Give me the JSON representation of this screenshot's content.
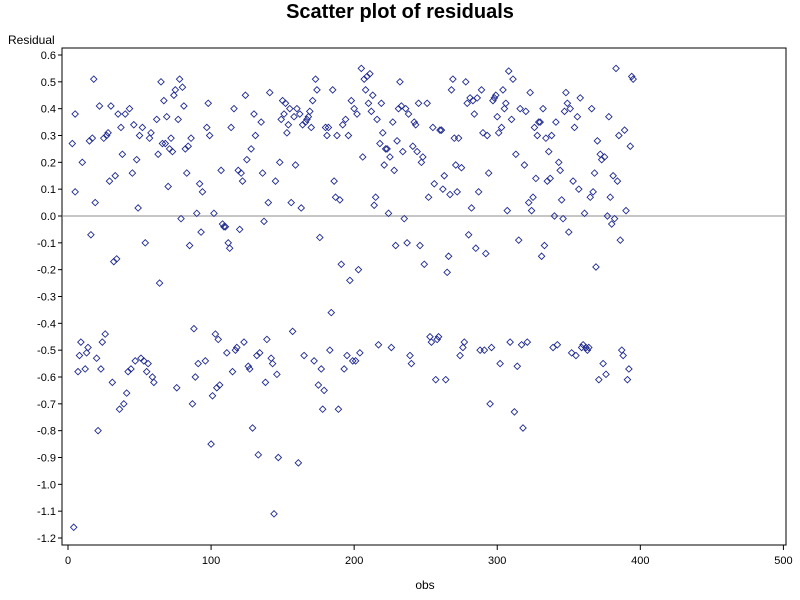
{
  "chart_data": {
    "type": "scatter",
    "title": "Scatter plot of residuals",
    "xlabel": "obs",
    "ylabel": "Residual",
    "xlim": [
      0,
      500
    ],
    "ylim": [
      -1.25,
      0.62
    ],
    "xticks": [
      "0",
      "100",
      "200",
      "300",
      "400",
      "500"
    ],
    "yticks": [
      "0.6",
      "0.5",
      "0.4",
      "0.3",
      "0.2",
      "0.1",
      "0.0",
      "-0.1",
      "-0.2",
      "-0.3",
      "-0.4",
      "-0.5",
      "-0.6",
      "-0.7",
      "-0.8",
      "-0.9",
      "-1.0",
      "-1.1",
      "-1.2"
    ],
    "reference_line_y": 0,
    "marker": "diamond",
    "marker_color": "#1f2a8f",
    "reference_line_color": "#8c8c8c",
    "grid": false,
    "points": [
      [
        3,
        0.27
      ],
      [
        4,
        -1.16
      ],
      [
        5,
        0.38
      ],
      [
        5,
        0.09
      ],
      [
        7,
        -0.58
      ],
      [
        8,
        -0.52
      ],
      [
        9,
        -0.47
      ],
      [
        10,
        0.2
      ],
      [
        12,
        -0.57
      ],
      [
        13,
        -0.51
      ],
      [
        14,
        -0.49
      ],
      [
        15,
        0.28
      ],
      [
        16,
        -0.07
      ],
      [
        17,
        0.29
      ],
      [
        18,
        0.51
      ],
      [
        19,
        0.05
      ],
      [
        20,
        -0.53
      ],
      [
        21,
        -0.8
      ],
      [
        22,
        0.41
      ],
      [
        23,
        -0.57
      ],
      [
        24,
        -0.47
      ],
      [
        25,
        0.29
      ],
      [
        26,
        -0.44
      ],
      [
        27,
        0.3
      ],
      [
        28,
        0.31
      ],
      [
        29,
        0.13
      ],
      [
        30,
        0.41
      ],
      [
        31,
        -0.62
      ],
      [
        32,
        -0.17
      ],
      [
        33,
        0.15
      ],
      [
        34,
        -0.16
      ],
      [
        35,
        0.38
      ],
      [
        36,
        -0.72
      ],
      [
        37,
        0.33
      ],
      [
        38,
        0.23
      ],
      [
        39,
        -0.7
      ],
      [
        40,
        0.38
      ],
      [
        41,
        -0.66
      ],
      [
        42,
        -0.58
      ],
      [
        43,
        0.4
      ],
      [
        44,
        -0.57
      ],
      [
        45,
        0.16
      ],
      [
        46,
        0.34
      ],
      [
        47,
        -0.54
      ],
      [
        48,
        0.21
      ],
      [
        49,
        0.03
      ],
      [
        50,
        0.3
      ],
      [
        51,
        -0.53
      ],
      [
        52,
        0.33
      ],
      [
        53,
        -0.54
      ],
      [
        54,
        -0.1
      ],
      [
        55,
        -0.58
      ],
      [
        56,
        -0.55
      ],
      [
        57,
        0.29
      ],
      [
        58,
        0.31
      ],
      [
        59,
        -0.6
      ],
      [
        60,
        -0.62
      ],
      [
        62,
        0.36
      ],
      [
        63,
        0.23
      ],
      [
        64,
        -0.25
      ],
      [
        65,
        0.5
      ],
      [
        66,
        0.27
      ],
      [
        67,
        0.43
      ],
      [
        68,
        0.27
      ],
      [
        69,
        0.37
      ],
      [
        70,
        0.11
      ],
      [
        71,
        0.25
      ],
      [
        72,
        0.29
      ],
      [
        73,
        0.24
      ],
      [
        74,
        0.45
      ],
      [
        75,
        0.47
      ],
      [
        76,
        -0.64
      ],
      [
        77,
        0.36
      ],
      [
        78,
        0.51
      ],
      [
        79,
        -0.01
      ],
      [
        80,
        0.48
      ],
      [
        81,
        0.41
      ],
      [
        82,
        0.25
      ],
      [
        83,
        0.16
      ],
      [
        84,
        0.26
      ],
      [
        85,
        -0.11
      ],
      [
        86,
        0.29
      ],
      [
        87,
        -0.7
      ],
      [
        88,
        -0.42
      ],
      [
        89,
        -0.6
      ],
      [
        90,
        0.01
      ],
      [
        91,
        -0.55
      ],
      [
        92,
        0.12
      ],
      [
        93,
        -0.06
      ],
      [
        94,
        0.09
      ],
      [
        96,
        -0.54
      ],
      [
        97,
        0.33
      ],
      [
        98,
        0.42
      ],
      [
        99,
        0.3
      ],
      [
        100,
        -0.85
      ],
      [
        101,
        -0.67
      ],
      [
        102,
        0.01
      ],
      [
        103,
        -0.44
      ],
      [
        104,
        -0.64
      ],
      [
        105,
        -0.46
      ],
      [
        106,
        -0.63
      ],
      [
        107,
        0.17
      ],
      [
        108,
        -0.03
      ],
      [
        109,
        -0.04
      ],
      [
        110,
        -0.04
      ],
      [
        111,
        -0.51
      ],
      [
        112,
        -0.1
      ],
      [
        113,
        -0.12
      ],
      [
        114,
        0.33
      ],
      [
        115,
        -0.58
      ],
      [
        116,
        0.4
      ],
      [
        117,
        -0.5
      ],
      [
        118,
        -0.49
      ],
      [
        119,
        0.17
      ],
      [
        120,
        -0.05
      ],
      [
        121,
        0.16
      ],
      [
        122,
        0.13
      ],
      [
        123,
        -0.47
      ],
      [
        124,
        0.45
      ],
      [
        125,
        0.21
      ],
      [
        126,
        -0.56
      ],
      [
        127,
        -0.57
      ],
      [
        128,
        0.25
      ],
      [
        129,
        -0.79
      ],
      [
        130,
        0.38
      ],
      [
        131,
        0.3
      ],
      [
        132,
        -0.52
      ],
      [
        133,
        -0.89
      ],
      [
        134,
        -0.51
      ],
      [
        135,
        0.35
      ],
      [
        136,
        0.16
      ],
      [
        137,
        -0.02
      ],
      [
        138,
        -0.62
      ],
      [
        139,
        -0.46
      ],
      [
        140,
        0.05
      ],
      [
        141,
        0.46
      ],
      [
        142,
        -0.53
      ],
      [
        143,
        -0.55
      ],
      [
        144,
        -1.11
      ],
      [
        145,
        0.13
      ],
      [
        146,
        -0.59
      ],
      [
        147,
        -0.9
      ],
      [
        148,
        0.2
      ],
      [
        149,
        0.36
      ],
      [
        150,
        0.43
      ],
      [
        151,
        0.38
      ],
      [
        152,
        0.42
      ],
      [
        153,
        0.31
      ],
      [
        154,
        0.34
      ],
      [
        155,
        0.4
      ],
      [
        156,
        0.05
      ],
      [
        157,
        -0.43
      ],
      [
        158,
        0.37
      ],
      [
        159,
        0.19
      ],
      [
        160,
        0.4
      ],
      [
        161,
        -0.92
      ],
      [
        162,
        0.38
      ],
      [
        163,
        0.03
      ],
      [
        164,
        0.34
      ],
      [
        165,
        -0.52
      ],
      [
        166,
        0.35
      ],
      [
        167,
        0.36
      ],
      [
        168,
        0.37
      ],
      [
        169,
        0.39
      ],
      [
        170,
        0.33
      ],
      [
        171,
        0.43
      ],
      [
        172,
        -0.54
      ],
      [
        173,
        0.51
      ],
      [
        174,
        0.47
      ],
      [
        175,
        -0.63
      ],
      [
        176,
        -0.08
      ],
      [
        177,
        -0.57
      ],
      [
        178,
        -0.72
      ],
      [
        179,
        -0.65
      ],
      [
        180,
        0.33
      ],
      [
        181,
        0.3
      ],
      [
        182,
        0.33
      ],
      [
        183,
        -0.5
      ],
      [
        184,
        -0.36
      ],
      [
        185,
        0.47
      ],
      [
        186,
        0.13
      ],
      [
        187,
        0.07
      ],
      [
        188,
        0.3
      ],
      [
        189,
        -0.72
      ],
      [
        190,
        0.06
      ],
      [
        191,
        -0.18
      ],
      [
        192,
        0.34
      ],
      [
        193,
        -0.57
      ],
      [
        194,
        0.36
      ],
      [
        195,
        -0.52
      ],
      [
        196,
        0.3
      ],
      [
        197,
        -0.24
      ],
      [
        198,
        0.43
      ],
      [
        199,
        -0.54
      ],
      [
        200,
        0.4
      ],
      [
        201,
        -0.54
      ],
      [
        202,
        0.38
      ],
      [
        203,
        -0.2
      ],
      [
        204,
        -0.51
      ],
      [
        205,
        0.55
      ],
      [
        206,
        0.22
      ],
      [
        207,
        0.51
      ],
      [
        208,
        0.47
      ],
      [
        209,
        0.52
      ],
      [
        210,
        0.42
      ],
      [
        211,
        0.53
      ],
      [
        212,
        0.39
      ],
      [
        213,
        0.45
      ],
      [
        214,
        0.04
      ],
      [
        215,
        0.07
      ],
      [
        216,
        0.36
      ],
      [
        217,
        -0.48
      ],
      [
        218,
        0.27
      ],
      [
        219,
        0.42
      ],
      [
        220,
        0.31
      ],
      [
        221,
        0.19
      ],
      [
        222,
        0.25
      ],
      [
        223,
        0.25
      ],
      [
        224,
        0.01
      ],
      [
        225,
        0.22
      ],
      [
        226,
        -0.49
      ],
      [
        227,
        0.35
      ],
      [
        228,
        0.17
      ],
      [
        229,
        -0.11
      ],
      [
        230,
        0.28
      ],
      [
        231,
        0.4
      ],
      [
        232,
        0.5
      ],
      [
        233,
        0.41
      ],
      [
        234,
        0.24
      ],
      [
        235,
        -0.01
      ],
      [
        236,
        0.4
      ],
      [
        237,
        -0.1
      ],
      [
        238,
        0.38
      ],
      [
        239,
        -0.52
      ],
      [
        240,
        -0.55
      ],
      [
        241,
        0.26
      ],
      [
        242,
        0.35
      ],
      [
        243,
        0.34
      ],
      [
        244,
        0.24
      ],
      [
        245,
        0.42
      ],
      [
        246,
        -0.11
      ],
      [
        247,
        0.2
      ],
      [
        248,
        0.22
      ],
      [
        249,
        -0.18
      ],
      [
        251,
        0.42
      ],
      [
        252,
        0.07
      ],
      [
        253,
        -0.45
      ],
      [
        254,
        -0.47
      ],
      [
        255,
        0.33
      ],
      [
        256,
        0.12
      ],
      [
        257,
        -0.61
      ],
      [
        258,
        -0.46
      ],
      [
        259,
        -0.45
      ],
      [
        260,
        0.32
      ],
      [
        261,
        0.32
      ],
      [
        262,
        0.1
      ],
      [
        263,
        0.15
      ],
      [
        264,
        -0.61
      ],
      [
        265,
        -0.21
      ],
      [
        266,
        -0.15
      ],
      [
        267,
        0.08
      ],
      [
        268,
        0.47
      ],
      [
        269,
        0.51
      ],
      [
        270,
        0.29
      ],
      [
        271,
        0.19
      ],
      [
        272,
        0.09
      ],
      [
        273,
        0.29
      ],
      [
        274,
        -0.52
      ],
      [
        275,
        0.18
      ],
      [
        276,
        -0.49
      ],
      [
        277,
        -0.47
      ],
      [
        278,
        0.5
      ],
      [
        279,
        0.42
      ],
      [
        280,
        -0.07
      ],
      [
        281,
        0.44
      ],
      [
        282,
        0.03
      ],
      [
        283,
        0.43
      ],
      [
        284,
        0.38
      ],
      [
        285,
        -0.12
      ],
      [
        286,
        0.44
      ],
      [
        287,
        0.09
      ],
      [
        288,
        -0.5
      ],
      [
        289,
        0.47
      ],
      [
        290,
        0.31
      ],
      [
        291,
        -0.5
      ],
      [
        292,
        -0.14
      ],
      [
        293,
        0.3
      ],
      [
        294,
        0.16
      ],
      [
        295,
        -0.7
      ],
      [
        296,
        -0.49
      ],
      [
        297,
        0.43
      ],
      [
        298,
        0.44
      ],
      [
        299,
        0.45
      ],
      [
        300,
        0.37
      ],
      [
        301,
        0.31
      ],
      [
        302,
        -0.55
      ],
      [
        303,
        0.33
      ],
      [
        304,
        0.47
      ],
      [
        305,
        0.4
      ],
      [
        306,
        0.42
      ],
      [
        307,
        0.02
      ],
      [
        308,
        0.54
      ],
      [
        309,
        -0.47
      ],
      [
        310,
        0.36
      ],
      [
        311,
        0.51
      ],
      [
        312,
        -0.73
      ],
      [
        313,
        0.23
      ],
      [
        314,
        -0.56
      ],
      [
        315,
        -0.09
      ],
      [
        316,
        0.4
      ],
      [
        317,
        -0.48
      ],
      [
        318,
        -0.79
      ],
      [
        319,
        0.19
      ],
      [
        320,
        0.39
      ],
      [
        321,
        -0.47
      ],
      [
        322,
        0.05
      ],
      [
        323,
        0.46
      ],
      [
        324,
        0.02
      ],
      [
        325,
        0.07
      ],
      [
        326,
        0.33
      ],
      [
        327,
        0.14
      ],
      [
        328,
        0.3
      ],
      [
        329,
        0.35
      ],
      [
        330,
        0.35
      ],
      [
        331,
        -0.15
      ],
      [
        332,
        0.4
      ],
      [
        333,
        -0.11
      ],
      [
        334,
        0.29
      ],
      [
        335,
        0.13
      ],
      [
        336,
        0.24
      ],
      [
        337,
        0.14
      ],
      [
        338,
        0.3
      ],
      [
        339,
        -0.49
      ],
      [
        340,
        0.0
      ],
      [
        341,
        0.35
      ],
      [
        342,
        -0.48
      ],
      [
        343,
        0.2
      ],
      [
        344,
        0.17
      ],
      [
        345,
        0.06
      ],
      [
        346,
        -0.01
      ],
      [
        347,
        0.39
      ],
      [
        348,
        0.46
      ],
      [
        349,
        0.42
      ],
      [
        350,
        -0.06
      ],
      [
        351,
        0.4
      ],
      [
        352,
        -0.51
      ],
      [
        353,
        0.13
      ],
      [
        354,
        0.33
      ],
      [
        355,
        -0.52
      ],
      [
        356,
        0.37
      ],
      [
        357,
        0.1
      ],
      [
        358,
        0.44
      ],
      [
        359,
        -0.49
      ],
      [
        360,
        -0.48
      ],
      [
        361,
        0.01
      ],
      [
        362,
        -0.49
      ],
      [
        363,
        -0.5
      ],
      [
        364,
        -0.49
      ],
      [
        365,
        0.07
      ],
      [
        366,
        0.4
      ],
      [
        367,
        0.09
      ],
      [
        368,
        0.16
      ],
      [
        369,
        -0.19
      ],
      [
        370,
        0.28
      ],
      [
        371,
        -0.61
      ],
      [
        372,
        0.23
      ],
      [
        373,
        0.21
      ],
      [
        374,
        -0.55
      ],
      [
        375,
        0.22
      ],
      [
        376,
        -0.59
      ],
      [
        377,
        0.0
      ],
      [
        378,
        0.37
      ],
      [
        379,
        0.07
      ],
      [
        380,
        -0.03
      ],
      [
        381,
        0.15
      ],
      [
        382,
        -0.01
      ],
      [
        383,
        0.55
      ],
      [
        384,
        0.13
      ],
      [
        385,
        0.3
      ],
      [
        386,
        -0.09
      ],
      [
        387,
        -0.5
      ],
      [
        388,
        -0.52
      ],
      [
        389,
        0.32
      ],
      [
        390,
        0.02
      ],
      [
        391,
        -0.61
      ],
      [
        392,
        -0.57
      ],
      [
        393,
        0.26
      ],
      [
        394,
        0.52
      ],
      [
        395,
        0.51
      ]
    ]
  }
}
